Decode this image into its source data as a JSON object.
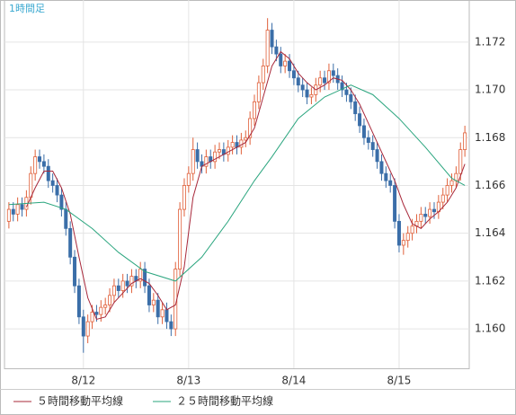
{
  "chart_data": {
    "type": "candlestick",
    "title": "1時間足",
    "x": [
      0,
      1,
      2,
      3,
      4,
      5,
      6,
      7,
      8,
      9,
      10,
      11,
      12,
      13,
      14,
      15,
      16,
      17,
      18,
      19,
      20,
      21,
      22,
      23,
      24,
      25,
      26,
      27,
      28,
      29,
      30,
      31,
      32,
      33,
      34,
      35,
      36,
      37,
      38,
      39,
      40,
      41,
      42,
      43,
      44,
      45,
      46,
      47,
      48,
      49,
      50,
      51,
      52,
      53,
      54,
      55,
      56,
      57,
      58,
      59,
      60,
      61,
      62,
      63,
      64,
      65,
      66,
      67,
      68,
      69,
      70,
      71,
      72,
      73,
      74,
      75,
      76,
      77,
      78,
      79,
      80,
      81,
      82,
      83,
      84,
      85,
      86,
      87,
      88,
      89,
      90,
      91,
      92,
      93,
      94,
      95,
      96,
      97,
      98,
      99,
      100,
      101,
      102,
      103,
      104
    ],
    "open": [
      1.1645,
      1.165,
      1.1648,
      1.1652,
      1.165,
      1.1655,
      1.1665,
      1.1672,
      1.167,
      1.1668,
      1.1662,
      1.166,
      1.1656,
      1.165,
      1.1642,
      1.163,
      1.1618,
      1.1605,
      1.1597,
      1.1603,
      1.1607,
      1.1606,
      1.1609,
      1.161,
      1.1614,
      1.1618,
      1.1616,
      1.162,
      1.1618,
      1.1622,
      1.162,
      1.1625,
      1.1618,
      1.161,
      1.1612,
      1.1605,
      1.1608,
      1.1603,
      1.16,
      1.1625,
      1.165,
      1.166,
      1.1665,
      1.1675,
      1.167,
      1.1668,
      1.1672,
      1.167,
      1.1674,
      1.1675,
      1.1673,
      1.1676,
      1.1678,
      1.1676,
      1.1679,
      1.168,
      1.1688,
      1.1695,
      1.1703,
      1.171,
      1.1725,
      1.1718,
      1.1715,
      1.171,
      1.1712,
      1.1708,
      1.1705,
      1.1702,
      1.17,
      1.1697,
      1.1698,
      1.1702,
      1.1705,
      1.1703,
      1.1708,
      1.1706,
      1.1703,
      1.17,
      1.1698,
      1.1695,
      1.169,
      1.1685,
      1.168,
      1.1678,
      1.1675,
      1.167,
      1.1665,
      1.1662,
      1.166,
      1.1645,
      1.1635,
      1.1637,
      1.164,
      1.1643,
      1.1645,
      1.1648,
      1.1647,
      1.165,
      1.1649,
      1.1653,
      1.1656,
      1.166,
      1.1662,
      1.1665,
      1.1675
    ],
    "high": [
      1.1653,
      1.1653,
      1.1655,
      1.1655,
      1.1658,
      1.1668,
      1.1675,
      1.1675,
      1.1673,
      1.1671,
      1.1665,
      1.1663,
      1.1659,
      1.1653,
      1.1645,
      1.1633,
      1.1621,
      1.1608,
      1.1606,
      1.161,
      1.161,
      1.1612,
      1.1613,
      1.1617,
      1.1621,
      1.1621,
      1.1623,
      1.1623,
      1.1625,
      1.1625,
      1.1628,
      1.1628,
      1.1621,
      1.1615,
      1.1615,
      1.1611,
      1.1611,
      1.1606,
      1.1628,
      1.1653,
      1.1663,
      1.1668,
      1.168,
      1.1678,
      1.1673,
      1.1675,
      1.1675,
      1.1677,
      1.1678,
      1.1678,
      1.1679,
      1.1681,
      1.1681,
      1.1682,
      1.1683,
      1.1691,
      1.1698,
      1.1706,
      1.1713,
      1.173,
      1.1728,
      1.1721,
      1.1718,
      1.1715,
      1.1715,
      1.1711,
      1.1708,
      1.1705,
      1.1703,
      1.1701,
      1.1705,
      1.1708,
      1.1708,
      1.1711,
      1.1711,
      1.1709,
      1.1706,
      1.1703,
      1.1701,
      1.1698,
      1.1693,
      1.1688,
      1.1683,
      1.1681,
      1.1678,
      1.1673,
      1.1668,
      1.1665,
      1.1663,
      1.1648,
      1.164,
      1.1643,
      1.1646,
      1.1648,
      1.1651,
      1.1651,
      1.1653,
      1.1653,
      1.1656,
      1.1659,
      1.1663,
      1.1665,
      1.1668,
      1.1678,
      1.1685
    ],
    "low": [
      1.1642,
      1.1645,
      1.1645,
      1.1647,
      1.1647,
      1.1652,
      1.1662,
      1.1667,
      1.1665,
      1.1659,
      1.1657,
      1.1653,
      1.1647,
      1.1639,
      1.1627,
      1.1615,
      1.1602,
      1.159,
      1.1594,
      1.16,
      1.1603,
      1.1603,
      1.1606,
      1.1607,
      1.1611,
      1.1613,
      1.1613,
      1.1615,
      1.1615,
      1.1617,
      1.1617,
      1.1615,
      1.1607,
      1.1607,
      1.1602,
      1.1602,
      1.16,
      1.1597,
      1.1597,
      1.1622,
      1.1647,
      1.1657,
      1.1662,
      1.1667,
      1.1665,
      1.1665,
      1.1667,
      1.1667,
      1.1671,
      1.167,
      1.167,
      1.1673,
      1.1673,
      1.1673,
      1.1676,
      1.1677,
      1.1685,
      1.1692,
      1.17,
      1.1707,
      1.1715,
      1.1712,
      1.1707,
      1.1707,
      1.1705,
      1.1702,
      1.1699,
      1.1697,
      1.1694,
      1.1694,
      1.1695,
      1.1699,
      1.17,
      1.17,
      1.1703,
      1.17,
      1.1697,
      1.1695,
      1.1692,
      1.1687,
      1.1682,
      1.1677,
      1.1675,
      1.1672,
      1.1667,
      1.1662,
      1.1659,
      1.1657,
      1.1642,
      1.1632,
      1.1631,
      1.1634,
      1.1637,
      1.164,
      1.1642,
      1.1644,
      1.1644,
      1.1646,
      1.1646,
      1.165,
      1.1653,
      1.1657,
      1.1659,
      1.1662,
      1.1672
    ],
    "close": [
      1.165,
      1.1648,
      1.1652,
      1.165,
      1.1655,
      1.1665,
      1.1672,
      1.167,
      1.1668,
      1.1662,
      1.166,
      1.1656,
      1.165,
      1.1642,
      1.163,
      1.1618,
      1.1605,
      1.1597,
      1.1603,
      1.1607,
      1.1606,
      1.1609,
      1.161,
      1.1614,
      1.1618,
      1.1616,
      1.162,
      1.1618,
      1.1622,
      1.162,
      1.1625,
      1.1618,
      1.161,
      1.1612,
      1.1605,
      1.1608,
      1.1603,
      1.16,
      1.1625,
      1.165,
      1.166,
      1.1665,
      1.1675,
      1.167,
      1.1668,
      1.1672,
      1.167,
      1.1674,
      1.1675,
      1.1673,
      1.1676,
      1.1678,
      1.1676,
      1.1679,
      1.168,
      1.1688,
      1.1695,
      1.1703,
      1.171,
      1.1725,
      1.1718,
      1.1715,
      1.171,
      1.1712,
      1.1708,
      1.1705,
      1.1702,
      1.17,
      1.1697,
      1.1698,
      1.1702,
      1.1705,
      1.1703,
      1.1708,
      1.1706,
      1.1703,
      1.17,
      1.1698,
      1.1695,
      1.169,
      1.1685,
      1.168,
      1.1678,
      1.1675,
      1.167,
      1.1665,
      1.1662,
      1.166,
      1.1645,
      1.1635,
      1.1637,
      1.164,
      1.1643,
      1.1645,
      1.1648,
      1.1647,
      1.165,
      1.1649,
      1.1653,
      1.1656,
      1.166,
      1.1662,
      1.1665,
      1.1675,
      1.1682
    ],
    "up_color": "#e0603a",
    "down_color": "#3b6ea8",
    "series": [
      {
        "name": "５時間移動平均線",
        "color": "#a8283a",
        "x": [
          4,
          6,
          8,
          10,
          12,
          14,
          16,
          18,
          20,
          22,
          24,
          26,
          28,
          30,
          32,
          34,
          36,
          38,
          40,
          42,
          44,
          46,
          48,
          50,
          52,
          54,
          56,
          58,
          60,
          62,
          64,
          66,
          68,
          70,
          72,
          74,
          76,
          78,
          80,
          82,
          84,
          86,
          88,
          90,
          92,
          94,
          96,
          98,
          100,
          102,
          104
        ],
        "values": [
          1.1651,
          1.1659,
          1.1666,
          1.1666,
          1.1659,
          1.1648,
          1.163,
          1.1613,
          1.1604,
          1.1605,
          1.1611,
          1.1615,
          1.1619,
          1.1621,
          1.1619,
          1.1614,
          1.1608,
          1.161,
          1.1626,
          1.1655,
          1.1668,
          1.167,
          1.1672,
          1.1674,
          1.1676,
          1.1678,
          1.1684,
          1.1697,
          1.171,
          1.1716,
          1.1713,
          1.1707,
          1.1703,
          1.17,
          1.1702,
          1.1705,
          1.1704,
          1.17,
          1.1694,
          1.1686,
          1.1678,
          1.167,
          1.1662,
          1.1652,
          1.1644,
          1.1642,
          1.1646,
          1.1649,
          1.1653,
          1.1659,
          1.1669
        ]
      },
      {
        "name": "２５時間移動平均線",
        "color": "#2aa57e",
        "x": [
          0,
          8,
          13,
          19,
          25,
          31,
          38,
          44,
          50,
          56,
          60,
          66,
          72,
          78,
          83,
          89,
          95,
          101,
          104
        ],
        "values": [
          1.1652,
          1.1653,
          1.165,
          1.1642,
          1.1632,
          1.1624,
          1.162,
          1.163,
          1.1645,
          1.1662,
          1.1672,
          1.1688,
          1.1697,
          1.1702,
          1.1698,
          1.1688,
          1.1676,
          1.1663,
          1.166
        ]
      }
    ],
    "xlim": [
      -1,
      105
    ],
    "xticks": [
      {
        "value": 17,
        "label": "8/12"
      },
      {
        "value": 41,
        "label": "8/13"
      },
      {
        "value": 65,
        "label": "8/14"
      },
      {
        "value": 89,
        "label": "8/15"
      }
    ],
    "ylim": [
      1.15835,
      1.17376
    ],
    "yticks": [
      {
        "value": 1.16,
        "label": "1.160"
      },
      {
        "value": 1.162,
        "label": "1.162"
      },
      {
        "value": 1.164,
        "label": "1.164"
      },
      {
        "value": 1.166,
        "label": "1.166"
      },
      {
        "value": 1.168,
        "label": "1.168"
      },
      {
        "value": 1.17,
        "label": "1.170"
      },
      {
        "value": 1.172,
        "label": "1.172"
      }
    ],
    "grid": true
  }
}
